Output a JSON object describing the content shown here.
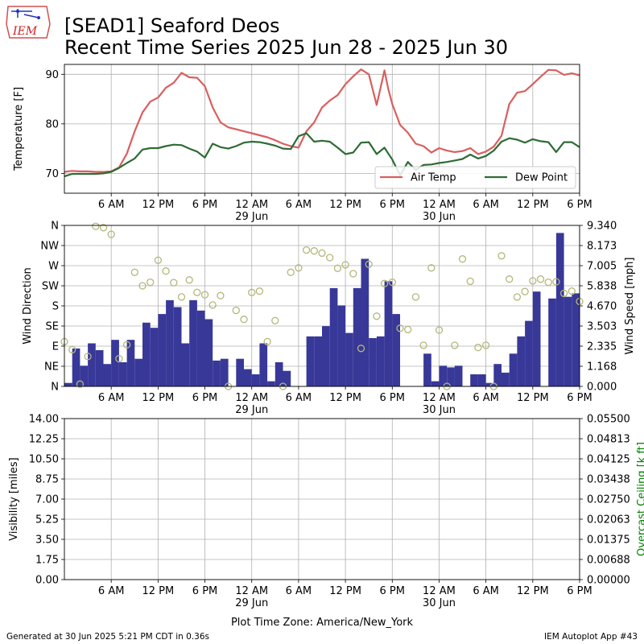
{
  "header": {
    "title_line1": "[SEAD1] Seaford Deos",
    "title_line2": "Recent Time Series 2025 Jun 28 - 2025 Jun 30",
    "logo_text": "IEM"
  },
  "footer": {
    "generated": "Generated at 30 Jun 2025 5:21 PM CDT in 0.36s",
    "app": "IEM Autoplot App #43",
    "timezone_label": "Plot Time Zone: America/New_York"
  },
  "colors": {
    "air_temp": "#d95f5f",
    "dew_point": "#2e6b35",
    "wind_speed_bar": "#383899",
    "wind_dir_marker": "#b5b77a",
    "ceiling_axis": "#008000",
    "grid": "#b0b0b0"
  },
  "chart_data": [
    {
      "type": "line",
      "ylabel": "Temperature [F]",
      "xlim": [
        -1,
        65
      ],
      "ylim": [
        66,
        92
      ],
      "yticks": [
        70,
        80,
        90
      ],
      "x_tick_labels": [
        "6 AM",
        "12 PM",
        "6 PM",
        "12 AM",
        "6 AM",
        "12 PM",
        "6 PM",
        "12 AM",
        "6 AM",
        "12 PM",
        "6 PM"
      ],
      "x_tick_hours": [
        5,
        11,
        17,
        23,
        29,
        35,
        41,
        47,
        53,
        59,
        65
      ],
      "date_labels": [
        {
          "hour": 23,
          "label": "29 Jun"
        },
        {
          "hour": 47,
          "label": "30 Jun"
        }
      ],
      "legend_placement": "lower-right",
      "grid": true,
      "series": [
        {
          "name": "Air Temp",
          "x": [
            -1,
            0,
            1,
            2,
            3,
            4,
            5,
            6,
            7,
            8,
            9,
            10,
            11,
            12,
            13,
            14,
            15,
            16,
            17,
            18,
            19,
            20,
            21,
            22,
            23,
            24,
            25,
            26,
            27,
            28,
            29,
            30,
            31,
            32,
            33,
            34,
            35,
            36,
            37,
            38,
            39,
            40,
            40.5,
            41,
            42,
            43,
            44,
            45,
            46,
            47,
            48,
            49,
            50,
            51,
            52,
            53,
            54,
            55,
            56,
            57,
            58,
            59,
            60,
            61,
            62,
            63,
            64,
            65
          ],
          "y": [
            70.3,
            70.5,
            70.4,
            70.4,
            70.3,
            70.3,
            70.4,
            71.2,
            74.0,
            78.5,
            82.3,
            84.5,
            85.3,
            87.3,
            88.3,
            90.3,
            89.4,
            89.3,
            87.6,
            83.3,
            80.3,
            79.3,
            78.9,
            78.5,
            78.1,
            77.7,
            77.3,
            76.7,
            76.0,
            75.5,
            75.2,
            78.5,
            80.3,
            83.3,
            84.7,
            85.8,
            88.0,
            89.6,
            91.0,
            90.0,
            83.8,
            90.8,
            87.0,
            84.0,
            79.8,
            78.2,
            76.0,
            75.5,
            74.2,
            75.1,
            74.6,
            74.3,
            74.5,
            75.1,
            73.9,
            74.4,
            75.4,
            77.6,
            84.0,
            86.3,
            86.6,
            88.0,
            89.5,
            90.9,
            90.8,
            89.9,
            90.2,
            89.8
          ]
        },
        {
          "name": "Dew Point",
          "x": [
            -1,
            0,
            1,
            2,
            3,
            4,
            5,
            6,
            7,
            8,
            9,
            10,
            11,
            12,
            13,
            14,
            15,
            16,
            17,
            18,
            19,
            20,
            21,
            22,
            23,
            24,
            25,
            26,
            27,
            28,
            29,
            30,
            31,
            32,
            33,
            34,
            35,
            36,
            37,
            38,
            39,
            40,
            40.5,
            41,
            42,
            43,
            44,
            45,
            46,
            47,
            48,
            49,
            50,
            51,
            52,
            53,
            54,
            55,
            56,
            57,
            58,
            59,
            60,
            61,
            62,
            63,
            64,
            65
          ],
          "y": [
            69.4,
            69.9,
            69.9,
            69.9,
            69.9,
            70.0,
            70.3,
            71.1,
            72.1,
            73.0,
            74.8,
            75.1,
            75.1,
            75.5,
            75.8,
            75.7,
            75.0,
            74.4,
            73.2,
            76.0,
            75.3,
            75.0,
            75.5,
            76.2,
            76.4,
            76.3,
            76.0,
            75.6,
            75.0,
            74.9,
            77.5,
            78.1,
            76.4,
            76.6,
            76.4,
            75.2,
            73.9,
            74.2,
            76.2,
            76.3,
            73.9,
            75.2,
            74.0,
            72.8,
            69.6,
            72.3,
            70.7,
            71.7,
            71.8,
            72.1,
            72.3,
            72.6,
            72.9,
            73.8,
            73.0,
            73.5,
            74.6,
            76.4,
            77.1,
            76.8,
            76.2,
            76.9,
            76.5,
            76.3,
            74.3,
            76.3,
            76.3,
            75.3
          ]
        }
      ]
    },
    {
      "type": "bar",
      "ylabel": "Wind Direction",
      "ylabel_right": "Wind Speed [mph]",
      "xlim": [
        -1,
        65
      ],
      "ylim_direction": [
        0,
        360
      ],
      "ylim_speed": [
        0,
        9.34
      ],
      "direction_tick_labels": [
        "N",
        "NE",
        "E",
        "SE",
        "S",
        "SW",
        "W",
        "NW",
        "N"
      ],
      "direction_tick_degrees": [
        0,
        45,
        90,
        135,
        180,
        225,
        270,
        315,
        360
      ],
      "speed_tick_labels": [
        "0.000",
        "1.168",
        "2.335",
        "3.503",
        "4.670",
        "5.838",
        "7.005",
        "8.173",
        "9.340"
      ],
      "x_tick_labels": [
        "6 AM",
        "12 PM",
        "6 PM",
        "12 AM",
        "6 AM",
        "12 PM",
        "6 PM",
        "12 AM",
        "6 AM",
        "12 PM",
        "6 PM"
      ],
      "x_tick_hours": [
        5,
        11,
        17,
        23,
        29,
        35,
        41,
        47,
        53,
        59,
        65
      ],
      "date_labels": [
        {
          "hour": 23,
          "label": "29 Jun"
        },
        {
          "hour": 47,
          "label": "30 Jun"
        }
      ],
      "grid": true,
      "series": [
        {
          "name": "Wind Speed",
          "x": [
            -1,
            0,
            1,
            2,
            3,
            4,
            5,
            6,
            7,
            8,
            9,
            10,
            11,
            12,
            13,
            14,
            15,
            16,
            17,
            18,
            19,
            20,
            21,
            22,
            23,
            24,
            25,
            26,
            27,
            28,
            29,
            30,
            31,
            32,
            33,
            34,
            35,
            36,
            37,
            38,
            39,
            40,
            41,
            42,
            43,
            44,
            45,
            46,
            47,
            48,
            49,
            50,
            51,
            52,
            53,
            54,
            55,
            56,
            57,
            58,
            59,
            60,
            61,
            62,
            63,
            64
          ],
          "values": [
            0.2,
            2.2,
            1.2,
            2.5,
            2.1,
            1.3,
            2.7,
            1.4,
            2.7,
            1.6,
            3.7,
            3.4,
            4.2,
            5.0,
            4.6,
            2.5,
            5.0,
            4.4,
            3.9,
            1.5,
            1.6,
            0,
            1.6,
            1.0,
            0.7,
            2.5,
            0.3,
            1.4,
            0.9,
            0,
            0,
            2.9,
            2.9,
            3.5,
            5.7,
            4.7,
            3.1,
            5.7,
            7.4,
            2.8,
            2.9,
            6.1,
            4.2,
            0,
            0,
            0,
            1.9,
            0.3,
            1.2,
            1.1,
            1.2,
            0,
            0.7,
            0.7,
            0.2,
            1.3,
            0.8,
            1.9,
            2.9,
            3.8,
            5.5,
            0,
            5.1,
            8.9,
            5.2,
            5.4
          ]
        },
        {
          "name": "Wind Direction",
          "x": [
            -1,
            0,
            1,
            2,
            3,
            4,
            5,
            6,
            7,
            8,
            9,
            10,
            11,
            12,
            13,
            14,
            15,
            16,
            17,
            18,
            19,
            20,
            21,
            22,
            23,
            24,
            25,
            26,
            27,
            28,
            29,
            30,
            31,
            32,
            33,
            34,
            35,
            36,
            37,
            38,
            39,
            40,
            41,
            42,
            43,
            44,
            45,
            46,
            47,
            48,
            49,
            50,
            51,
            52,
            53,
            54,
            55,
            56,
            57,
            58,
            59,
            60,
            61,
            62,
            63,
            64,
            65
          ],
          "values": [
            100,
            82,
            5,
            67,
            358,
            355,
            340,
            62,
            93,
            255,
            225,
            233,
            282,
            258,
            232,
            200,
            238,
            210,
            205,
            182,
            203,
            0,
            170,
            150,
            210,
            213,
            100,
            147,
            0,
            255,
            265,
            305,
            303,
            298,
            288,
            264,
            272,
            252,
            85,
            273,
            157,
            230,
            233,
            130,
            127,
            200,
            92,
            265,
            126,
            0,
            92,
            285,
            235,
            87,
            92,
            0,
            292,
            240,
            200,
            212,
            236,
            240,
            233,
            234,
            208,
            213,
            190
          ]
        }
      ]
    },
    {
      "type": "line",
      "ylabel": "Visibility [miles]",
      "ylabel_right": "Overcast Ceiling [k ft]",
      "xlim": [
        -1,
        65
      ],
      "ylim": [
        0,
        14
      ],
      "ylim_right": [
        0,
        0.055
      ],
      "left_tick_labels": [
        "0.00",
        "1.75",
        "3.50",
        "5.25",
        "7.00",
        "8.75",
        "10.50",
        "12.25",
        "14.00"
      ],
      "right_tick_labels": [
        "0.00000",
        "0.00688",
        "0.01375",
        "0.02063",
        "0.02750",
        "0.03438",
        "0.04125",
        "0.04813",
        "0.05500"
      ],
      "x_tick_labels": [
        "6 AM",
        "12 PM",
        "6 PM",
        "12 AM",
        "6 AM",
        "12 PM",
        "6 PM",
        "12 AM",
        "6 AM",
        "12 PM",
        "6 PM"
      ],
      "x_tick_hours": [
        5,
        11,
        17,
        23,
        29,
        35,
        41,
        47,
        53,
        59,
        65
      ],
      "date_labels": [
        {
          "hour": 23,
          "label": "29 Jun"
        },
        {
          "hour": 47,
          "label": "30 Jun"
        }
      ],
      "grid": true,
      "series": []
    }
  ]
}
